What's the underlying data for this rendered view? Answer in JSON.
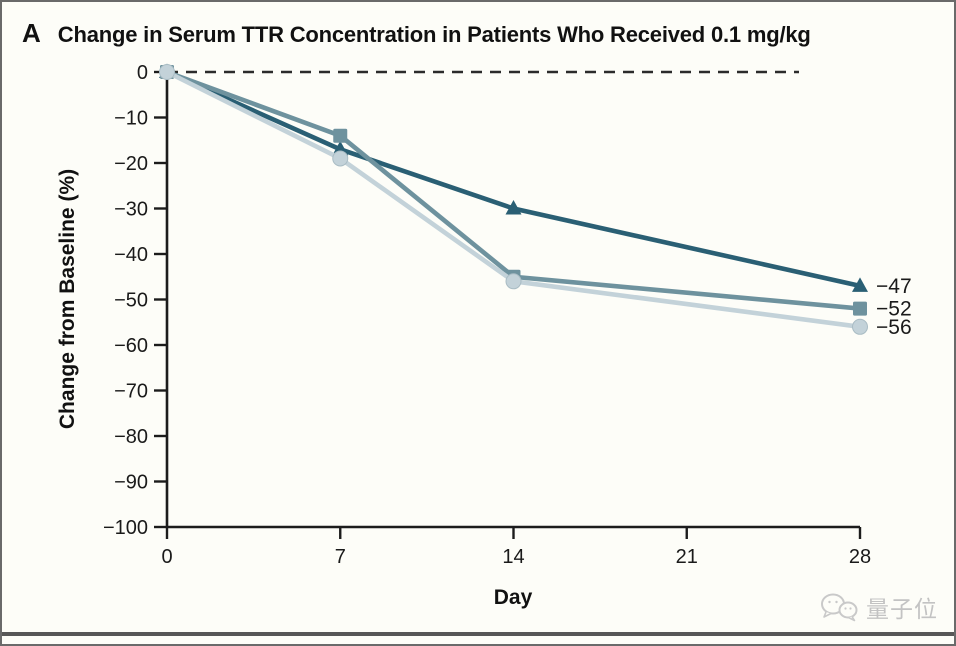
{
  "header": {
    "panel_label": "A",
    "title": "Change in Serum TTR Concentration in Patients Who Received 0.1 mg/kg"
  },
  "watermark": {
    "text": "量子位"
  },
  "chart_data": {
    "type": "line",
    "title": "Change in Serum TTR Concentration in Patients Who Received 0.1 mg/kg",
    "xlabel": "Day",
    "ylabel": "Change from Baseline (%)",
    "x": [
      0,
      7,
      14,
      28
    ],
    "xlim": [
      0,
      28
    ],
    "ylim": [
      -100,
      0
    ],
    "xticks": [
      0,
      7,
      14,
      21,
      28
    ],
    "xtick_labels": [
      "0",
      "7",
      "14",
      "21",
      "28"
    ],
    "yticks": [
      0,
      -10,
      -20,
      -30,
      -40,
      -50,
      -60,
      -70,
      -80,
      -90,
      -100
    ],
    "ytick_labels": [
      "0",
      "−10",
      "−20",
      "−30",
      "−40",
      "−50",
      "−60",
      "−70",
      "−80",
      "−90",
      "−100"
    ],
    "grid": false,
    "legend_position": "none",
    "zero_line_dashed": true,
    "axis_color": "#1c1c1c",
    "series": [
      {
        "name": "dose-group-triangle",
        "marker": "triangle",
        "color": "#2a5f74",
        "values": [
          0,
          -17,
          -30,
          -47
        ],
        "end_label": "−47"
      },
      {
        "name": "dose-group-square",
        "marker": "square",
        "color": "#6e929e",
        "values": [
          0,
          -14,
          -45,
          -52
        ],
        "end_label": "−52"
      },
      {
        "name": "dose-group-circle",
        "marker": "circle",
        "color": "#c3d2d9",
        "values": [
          0,
          -19,
          -46,
          -56
        ],
        "end_label": "−56"
      }
    ]
  }
}
